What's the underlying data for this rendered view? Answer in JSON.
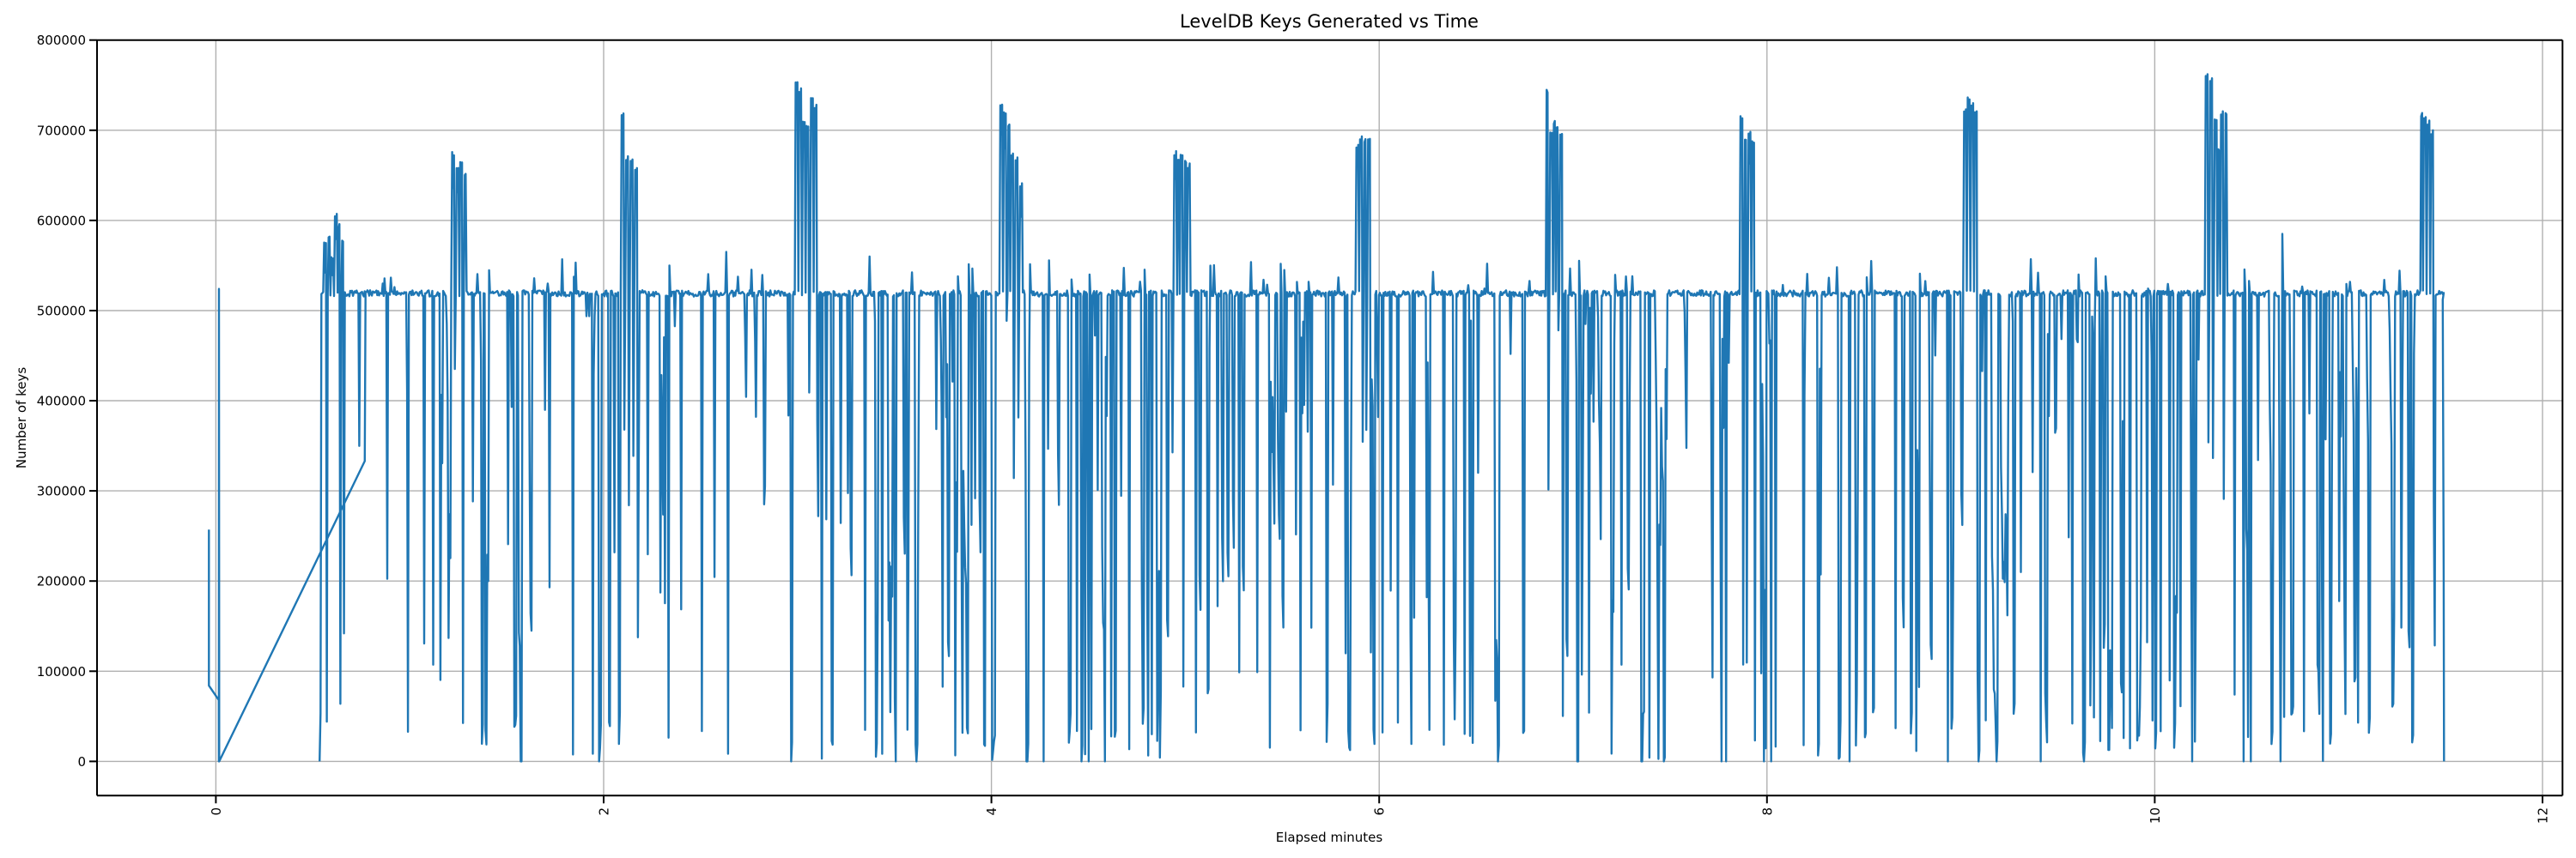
{
  "chart_data": {
    "type": "line",
    "title": "LevelDB Keys Generated vs Time",
    "xlabel": "Elapsed minutes",
    "ylabel": "Number of keys",
    "x_ticks": [
      0,
      2,
      4,
      6,
      8,
      10,
      12
    ],
    "x_tick_labels": [
      "0",
      "2",
      "4",
      "6",
      "8",
      "10",
      "12"
    ],
    "y_ticks": [
      0,
      100000,
      200000,
      300000,
      400000,
      500000,
      600000,
      700000,
      800000
    ],
    "y_tick_labels": [
      "0",
      "100000",
      "200000",
      "300000",
      "400000",
      "500000",
      "600000",
      "700000",
      "800000"
    ],
    "x_tick_label_rotation_deg": 90,
    "xlim": [
      -0.613,
      12.103
    ],
    "ylim": [
      -38000,
      800000
    ],
    "grid": true,
    "legend": "none",
    "line_color": "#1f77b4",
    "grid_color": "#b0b0b0",
    "spine_color": "#000000",
    "background": "#ffffff",
    "baseline_plateau": 519000,
    "observed_max": 763000,
    "intro_points": [
      [
        -0.036,
        257000
      ],
      [
        -0.036,
        84000
      ],
      [
        0.015,
        68000
      ],
      [
        0.0155,
        0
      ],
      [
        0.016,
        524000
      ],
      [
        0.017,
        0
      ],
      [
        0.768,
        333000
      ],
      [
        0.772,
        519000
      ]
    ],
    "series_start_point": [
      0.535,
      0
    ],
    "spike_clusters": [
      {
        "t_start": 0.54,
        "t_end": 0.7,
        "peaks": [
          577000,
          583000,
          560000,
          610000,
          596000,
          578000
        ]
      },
      {
        "t_start": 1.2,
        "t_end": 1.33,
        "peaks": [
          676000,
          661000,
          668000,
          655000
        ]
      },
      {
        "t_start": 2.08,
        "t_end": 2.21,
        "peaks": [
          722000,
          672000,
          668000,
          660000
        ]
      },
      {
        "t_start": 2.98,
        "t_end": 3.21,
        "peaks": [
          755000,
          748000,
          712000,
          706000,
          736000,
          730000
        ]
      },
      {
        "t_start": 4.03,
        "t_end": 4.18,
        "peaks": [
          730000,
          721000,
          707000,
          678000,
          672000,
          643000
        ]
      },
      {
        "t_start": 4.93,
        "t_end": 5.1,
        "peaks": [
          678000,
          670000,
          674000,
          667000,
          664000
        ]
      },
      {
        "t_start": 5.87,
        "t_end": 6.01,
        "peaks": [
          684000,
          695000,
          692000,
          694000
        ]
      },
      {
        "t_start": 6.85,
        "t_end": 7.03,
        "peaks": [
          745000,
          701000,
          712000,
          705000,
          698000
        ]
      },
      {
        "t_start": 7.84,
        "t_end": 8.01,
        "peaks": [
          716000,
          692000,
          700000,
          688000
        ]
      },
      {
        "t_start": 9.0,
        "t_end": 9.17,
        "peaks": [
          725000,
          737000,
          731000,
          722000
        ]
      },
      {
        "t_start": 10.25,
        "t_end": 10.46,
        "peaks": [
          763000,
          758000,
          713000,
          680000,
          722000,
          719000
        ]
      },
      {
        "t_start": 11.36,
        "t_end": 11.48,
        "peaks": [
          720000,
          717000,
          712000,
          700000
        ]
      }
    ],
    "minor_bumps": [
      [
        0.9,
        526000
      ],
      [
        1.7,
        530000
      ],
      [
        2.62,
        565000
      ],
      [
        3.35,
        560000
      ],
      [
        4.5,
        540000
      ],
      [
        4.75,
        532000
      ],
      [
        5.5,
        545000
      ],
      [
        6.55,
        552000
      ],
      [
        7.3,
        538000
      ],
      [
        8.35,
        548000
      ],
      [
        8.52,
        555000
      ],
      [
        9.35,
        557000
      ],
      [
        9.6,
        540000
      ],
      [
        10.65,
        585000
      ]
    ],
    "end_points": [
      [
        11.485,
        512000
      ],
      [
        11.49,
        210000
      ],
      [
        11.492,
        0
      ]
    ],
    "noise_model": {
      "seed": 7,
      "sample_interval_min": 0.00465,
      "data_start_min": 0.535,
      "data_end_min": 11.482,
      "dip_probability": 0.45,
      "calm_zone": [
        8.05,
        8.95
      ],
      "calm_dip_probability": 0.3,
      "baseline_jitter": 7000
    }
  }
}
